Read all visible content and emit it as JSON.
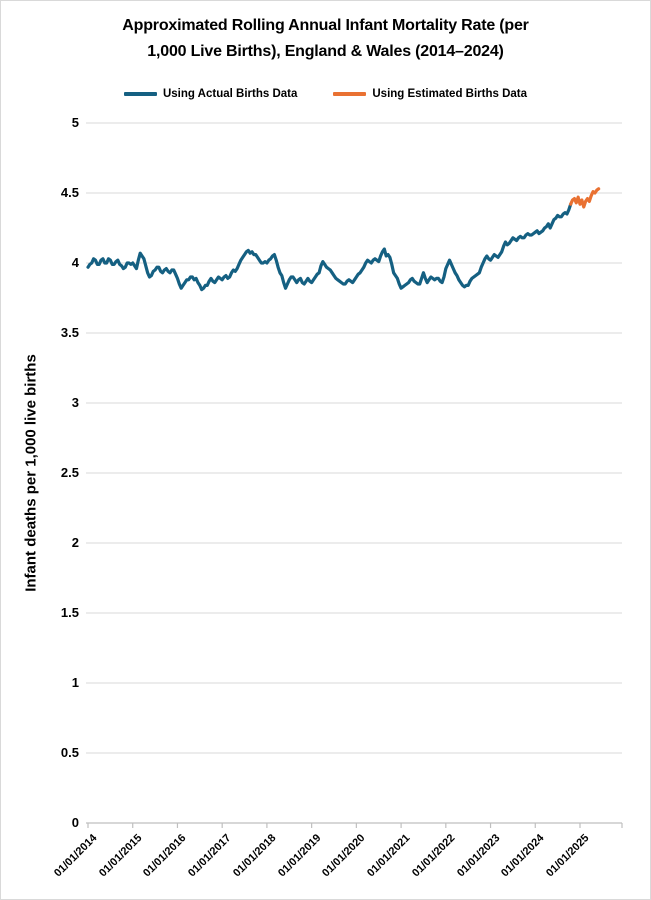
{
  "window": {
    "background": "#ffffff",
    "border_color": "#d9d9d9"
  },
  "title": {
    "full": "Approximated Rolling Annual Infant Mortality Rate (per 1,000 Live Births), England & Wales (2014–2024)",
    "line1": "Approximated Rolling Annual Infant Mortality Rate (per",
    "line2": "1,000 Live Births), England & Wales (2014–2024)"
  },
  "chart_data": {
    "type": "line",
    "title": "Approximated Rolling Annual Infant Mortality Rate (per 1,000 Live Births), England & Wales (2014–2024)",
    "xlabel": "",
    "ylabel": "Infant deaths per 1,000 live births",
    "ylim": [
      0,
      5
    ],
    "ytick_step": 0.5,
    "ytick_values": [
      0,
      0.5,
      1,
      1.5,
      2,
      2.5,
      3,
      3.5,
      4,
      4.5,
      5
    ],
    "ytick_labels": [
      "0",
      "0.5",
      "1",
      "1.5",
      "2",
      "2.5",
      "3",
      "3.5",
      "4",
      "4.5",
      "5"
    ],
    "xtick_labels": [
      "01/01/2014",
      "01/01/2015",
      "01/01/2016",
      "01/01/2017",
      "01/01/2018",
      "01/01/2019",
      "01/01/2020",
      "01/01/2021",
      "01/01/2022",
      "01/01/2023",
      "01/01/2024",
      "01/01/2025"
    ],
    "xtick_years": [
      2014,
      2015,
      2016,
      2017,
      2018,
      2019,
      2020,
      2021,
      2022,
      2023,
      2024,
      2025
    ],
    "xlim_years": [
      2014.0,
      2025.95
    ],
    "grid": "horizontal",
    "gridline_color": "#d9d9d9",
    "axis_color": "#bfbfbf",
    "legend_position": "top",
    "series": [
      {
        "name": "Using Actual Births Data",
        "color": "#156082",
        "t0": 2014.0,
        "dt": 0.0416667,
        "values": [
          3.97,
          3.99,
          4.0,
          4.03,
          4.02,
          3.99,
          3.99,
          4.02,
          4.03,
          4.0,
          4.0,
          4.03,
          4.02,
          3.99,
          3.99,
          4.01,
          4.02,
          3.99,
          3.98,
          3.96,
          3.97,
          4.0,
          4.0,
          3.99,
          4.0,
          3.98,
          3.96,
          4.02,
          4.07,
          4.05,
          4.03,
          3.98,
          3.93,
          3.9,
          3.91,
          3.94,
          3.95,
          3.97,
          3.97,
          3.94,
          3.93,
          3.95,
          3.96,
          3.94,
          3.93,
          3.95,
          3.95,
          3.92,
          3.89,
          3.85,
          3.82,
          3.84,
          3.86,
          3.88,
          3.88,
          3.9,
          3.9,
          3.88,
          3.89,
          3.86,
          3.84,
          3.81,
          3.82,
          3.84,
          3.84,
          3.87,
          3.89,
          3.87,
          3.86,
          3.88,
          3.9,
          3.89,
          3.88,
          3.9,
          3.91,
          3.89,
          3.9,
          3.93,
          3.95,
          3.94,
          3.96,
          3.99,
          4.02,
          4.04,
          4.06,
          4.08,
          4.09,
          4.07,
          4.08,
          4.06,
          4.06,
          4.04,
          4.02,
          4.0,
          4.0,
          4.01,
          4.0,
          4.02,
          4.03,
          4.05,
          4.06,
          4.02,
          3.97,
          3.93,
          3.91,
          3.86,
          3.82,
          3.85,
          3.88,
          3.9,
          3.9,
          3.88,
          3.86,
          3.88,
          3.89,
          3.86,
          3.85,
          3.87,
          3.89,
          3.87,
          3.86,
          3.88,
          3.9,
          3.92,
          3.93,
          3.98,
          4.01,
          3.99,
          3.97,
          3.96,
          3.95,
          3.93,
          3.91,
          3.89,
          3.88,
          3.87,
          3.86,
          3.85,
          3.85,
          3.87,
          3.88,
          3.87,
          3.86,
          3.88,
          3.9,
          3.92,
          3.93,
          3.95,
          3.97,
          4.0,
          4.02,
          4.01,
          4.0,
          4.02,
          4.03,
          4.02,
          4.01,
          4.05,
          4.08,
          4.1,
          4.05,
          4.06,
          4.04,
          3.99,
          3.93,
          3.91,
          3.89,
          3.85,
          3.82,
          3.83,
          3.84,
          3.85,
          3.86,
          3.88,
          3.89,
          3.87,
          3.86,
          3.85,
          3.85,
          3.89,
          3.93,
          3.89,
          3.86,
          3.88,
          3.9,
          3.89,
          3.88,
          3.89,
          3.89,
          3.87,
          3.86,
          3.9,
          3.96,
          3.99,
          4.02,
          3.99,
          3.96,
          3.93,
          3.91,
          3.88,
          3.86,
          3.84,
          3.83,
          3.84,
          3.84,
          3.87,
          3.89,
          3.9,
          3.91,
          3.92,
          3.93,
          3.97,
          4.0,
          4.03,
          4.05,
          4.03,
          4.02,
          4.04,
          4.06,
          4.05,
          4.04,
          4.06,
          4.08,
          4.12,
          4.15,
          4.13,
          4.14,
          4.16,
          4.18,
          4.17,
          4.16,
          4.18,
          4.19,
          4.18,
          4.18,
          4.2,
          4.21,
          4.2,
          4.2,
          4.21,
          4.22,
          4.23,
          4.21,
          4.22,
          4.23,
          4.25,
          4.26,
          4.28,
          4.25,
          4.28,
          4.31,
          4.32,
          4.34,
          4.33,
          4.33,
          4.35,
          4.36,
          4.35,
          4.38,
          4.42
        ]
      },
      {
        "name": "Using Estimated Births Data",
        "color": "#E97132",
        "t0": 2024.7917,
        "dt": 0.0416667,
        "values": [
          4.42,
          4.45,
          4.46,
          4.43,
          4.47,
          4.42,
          4.45,
          4.4,
          4.44,
          4.46,
          4.44,
          4.48,
          4.51,
          4.5,
          4.52,
          4.53
        ]
      }
    ]
  }
}
